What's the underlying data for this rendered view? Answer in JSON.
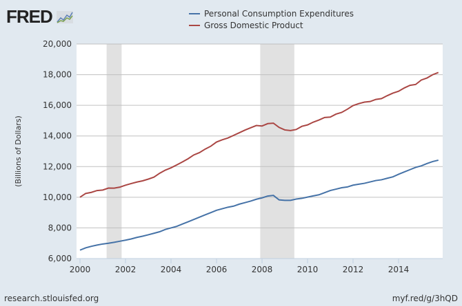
{
  "logo": "FRED",
  "footer": {
    "left": "research.stlouisfed.org",
    "right": "myf.red/g/3hQD"
  },
  "chart_data": {
    "type": "line",
    "title": "",
    "xlabel": "",
    "ylabel": "(Billions of Dollars)",
    "xlim": [
      2000,
      2016
    ],
    "ylim": [
      6000,
      20000
    ],
    "xticks": [
      "2000",
      "2002",
      "2004",
      "2006",
      "2008",
      "2010",
      "2012",
      "2014"
    ],
    "yticks": [
      "6,000",
      "8,000",
      "10,000",
      "12,000",
      "14,000",
      "16,000",
      "18,000",
      "20,000"
    ],
    "grid": true,
    "legend_position": "top-center",
    "recessions": [
      [
        2001.17,
        2001.83
      ],
      [
        2007.92,
        2009.42
      ]
    ],
    "x_start": 2000,
    "x_step": 0.25,
    "series": [
      {
        "name": "Personal Consumption Expenditures",
        "color": "#4572a7",
        "values": [
          6550,
          6700,
          6800,
          6880,
          6950,
          7000,
          7060,
          7130,
          7200,
          7280,
          7380,
          7460,
          7550,
          7650,
          7750,
          7900,
          8000,
          8100,
          8250,
          8400,
          8550,
          8700,
          8850,
          9000,
          9150,
          9250,
          9350,
          9420,
          9550,
          9650,
          9750,
          9870,
          9960,
          10080,
          10120,
          9830,
          9800,
          9800,
          9880,
          9930,
          10010,
          10090,
          10160,
          10300,
          10440,
          10530,
          10620,
          10670,
          10790,
          10850,
          10910,
          11000,
          11090,
          11140,
          11240,
          11330,
          11500,
          11650,
          11800,
          11950,
          12050,
          12200,
          12330,
          12420
        ]
      },
      {
        "name": "Gross Domestic Product",
        "color": "#aa4643",
        "values": [
          10002,
          10247,
          10319,
          10439,
          10472,
          10597,
          10596,
          10660,
          10789,
          10893,
          10992,
          11071,
          11183,
          11312,
          11567,
          11769,
          11920,
          12109,
          12304,
          12512,
          12761,
          12911,
          13143,
          13333,
          13604,
          13750,
          13867,
          14038,
          14208,
          14383,
          14535,
          14681,
          14651,
          14805,
          14835,
          14559,
          14394,
          14352,
          14421,
          14629,
          14722,
          14900,
          15038,
          15206,
          15231,
          15425,
          15535,
          15745,
          15982,
          16112,
          16208,
          16246,
          16383,
          16439,
          16627,
          16796,
          16915,
          17132,
          17301,
          17359,
          17651,
          17783,
          17999,
          18141
        ]
      }
    ]
  }
}
